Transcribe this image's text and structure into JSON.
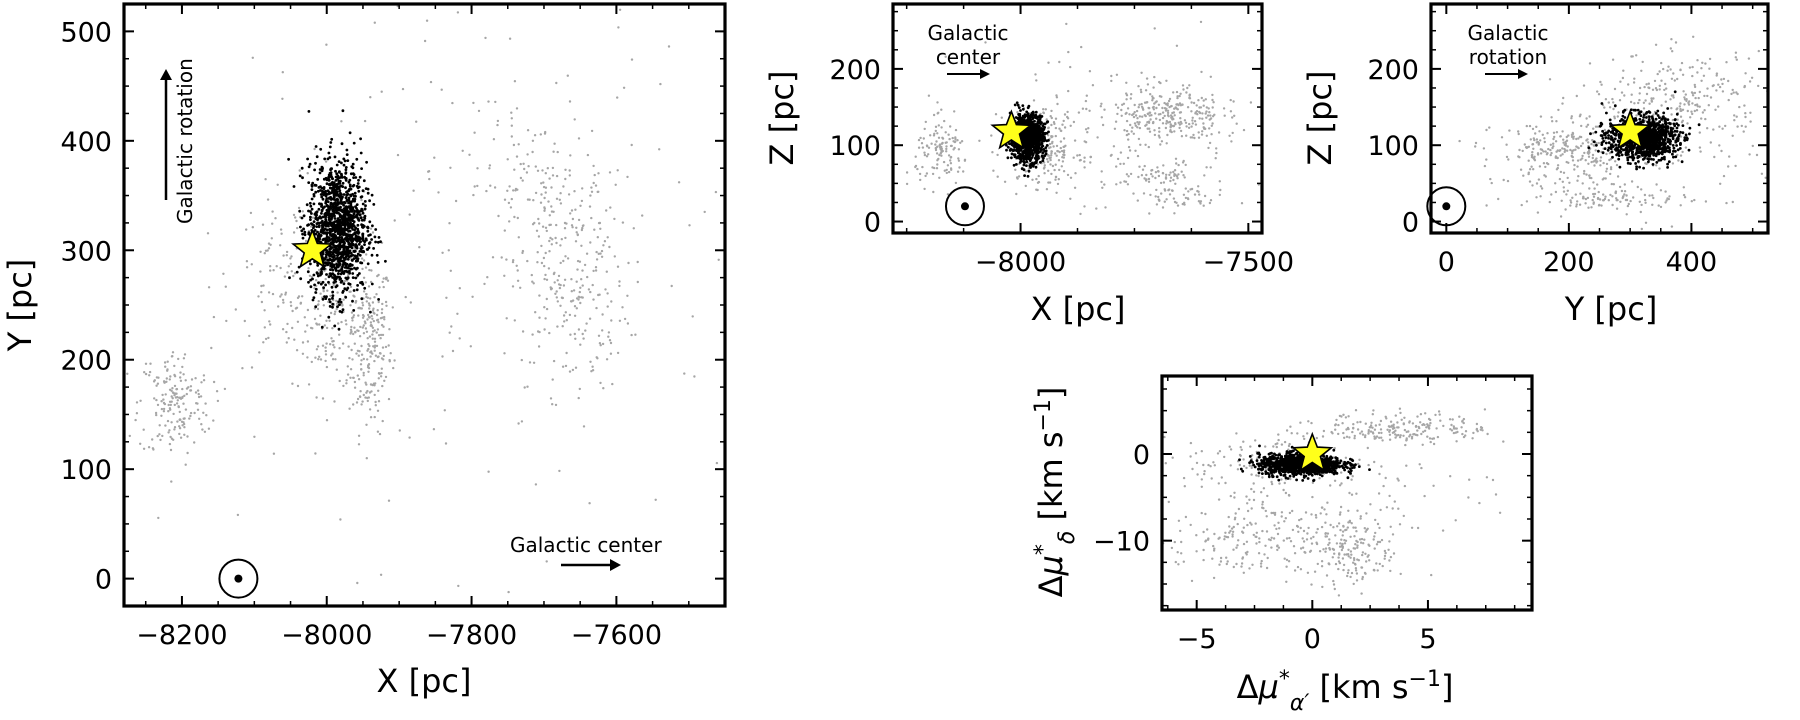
{
  "colors": {
    "member": "#000000",
    "neighbor": "#a6a6a6",
    "star_fill": "#ffff1a",
    "star_edge": "#000000"
  },
  "chart_data": [
    {
      "type": "scatter",
      "panel": "xy",
      "xlabel": "X [pc]",
      "ylabel": "Y [pc]",
      "xlim": [
        -8280,
        -7450
      ],
      "ylim": [
        -25,
        525
      ],
      "xticks": [
        -8200,
        -8000,
        -7800,
        -7600
      ],
      "yticks": [
        0,
        100,
        200,
        300,
        400,
        500
      ],
      "xtick_labels": [
        "−8200",
        "−8000",
        "−7800",
        "−7600"
      ],
      "ytick_labels": [
        "0",
        "100",
        "200",
        "300",
        "400",
        "500"
      ],
      "grid": false,
      "sun": {
        "x": -8122,
        "y": 0
      },
      "star": {
        "x": -8020,
        "y": 300
      },
      "annotations": [
        {
          "text": "Galactic rotation",
          "direction": "+Y"
        },
        {
          "text": "Galactic center",
          "direction": "+X"
        }
      ],
      "series": [
        {
          "role": "cluster members",
          "center": [
            -7985,
            320
          ],
          "spread": [
            20,
            30
          ],
          "n": 1300
        },
        {
          "role": "neighboring stars",
          "center": [
            -7940,
            215
          ],
          "spread": [
            15,
            40
          ],
          "n": 220
        },
        {
          "role": "neighboring stars",
          "center": [
            -7990,
            250
          ],
          "spread": [
            25,
            40
          ],
          "n": 180
        },
        {
          "role": "neighboring stars",
          "center": [
            -8050,
            275
          ],
          "spread": [
            40,
            40
          ],
          "n": 140
        },
        {
          "role": "neighboring stars",
          "center": [
            -8210,
            160
          ],
          "spread": [
            25,
            25
          ],
          "n": 180
        },
        {
          "role": "neighboring stars",
          "center": [
            -7665,
            270
          ],
          "spread": [
            40,
            50
          ],
          "n": 240
        },
        {
          "role": "neighboring stars",
          "center": [
            -7710,
            360
          ],
          "spread": [
            50,
            30
          ],
          "n": 100
        },
        {
          "role": "neighboring stars",
          "center": [
            -7780,
            300
          ],
          "spread": [
            160,
            140
          ],
          "n": 160
        }
      ]
    },
    {
      "type": "scatter",
      "panel": "xz",
      "xlabel": "X [pc]",
      "ylabel": "Z [pc]",
      "xlim": [
        -8280,
        -7470
      ],
      "ylim": [
        -15,
        285
      ],
      "xticks": [
        -8000,
        -7500
      ],
      "yticks": [
        0,
        100,
        200
      ],
      "xtick_labels": [
        "−8000",
        "−7500"
      ],
      "ytick_labels": [
        "0",
        "100",
        "200"
      ],
      "grid": false,
      "sun": {
        "x": -8122,
        "y": 20
      },
      "star": {
        "x": -8020,
        "y": 118
      },
      "annotations": [
        {
          "text": "Galactic center",
          "direction": "+X"
        }
      ],
      "series": [
        {
          "role": "cluster members",
          "center": [
            -7985,
            110
          ],
          "spread": [
            18,
            15
          ],
          "n": 1100
        },
        {
          "role": "neighboring stars",
          "center": [
            -7680,
            140
          ],
          "spread": [
            60,
            20
          ],
          "n": 260
        },
        {
          "role": "neighboring stars",
          "center": [
            -8170,
            90
          ],
          "spread": [
            30,
            20
          ],
          "n": 120
        },
        {
          "role": "neighboring stars",
          "center": [
            -7950,
            95
          ],
          "spread": [
            40,
            25
          ],
          "n": 200
        },
        {
          "role": "neighboring stars",
          "center": [
            -7700,
            60
          ],
          "spread": [
            50,
            8
          ],
          "n": 60
        },
        {
          "role": "neighboring stars",
          "center": [
            -7650,
            30
          ],
          "spread": [
            50,
            8
          ],
          "n": 50
        },
        {
          "role": "neighboring stars",
          "center": [
            -7780,
            120
          ],
          "spread": [
            170,
            60
          ],
          "n": 140
        }
      ]
    },
    {
      "type": "scatter",
      "panel": "yz",
      "xlabel": "Y [pc]",
      "ylabel": "Z [pc]",
      "xlim": [
        -25,
        525
      ],
      "ylim": [
        -15,
        285
      ],
      "xticks": [
        0,
        200,
        400
      ],
      "yticks": [
        0,
        100,
        200
      ],
      "xtick_labels": [
        "0",
        "200",
        "400"
      ],
      "ytick_labels": [
        "0",
        "100",
        "200"
      ],
      "grid": false,
      "sun": {
        "x": 0,
        "y": 20
      },
      "star": {
        "x": 300,
        "y": 118
      },
      "annotations": [
        {
          "text": "Galactic rotation",
          "direction": "+Y"
        }
      ],
      "series": [
        {
          "role": "cluster members",
          "center": [
            320,
            110
          ],
          "spread": [
            28,
            14
          ],
          "n": 1100
        },
        {
          "role": "neighboring stars",
          "center": [
            380,
            160
          ],
          "spread": [
            70,
            30
          ],
          "n": 260
        },
        {
          "role": "neighboring stars",
          "center": [
            200,
            90
          ],
          "spread": [
            60,
            20
          ],
          "n": 260
        },
        {
          "role": "neighboring stars",
          "center": [
            270,
            30
          ],
          "spread": [
            60,
            6
          ],
          "n": 80
        },
        {
          "role": "neighboring stars",
          "center": [
            300,
            70
          ],
          "spread": [
            120,
            40
          ],
          "n": 120
        }
      ]
    },
    {
      "type": "scatter",
      "panel": "proper-motion",
      "xlabel": "Δμ*α′ [km s−1]",
      "ylabel": "Δμ*δ [km s−1]",
      "xlim": [
        -6.5,
        9.5
      ],
      "ylim": [
        -18,
        9
      ],
      "xticks": [
        -5,
        0,
        5
      ],
      "yticks": [
        -10,
        0
      ],
      "xtick_labels": [
        "−5",
        "0",
        "5"
      ],
      "ytick_labels": [
        "−10",
        "0"
      ],
      "grid": false,
      "star": {
        "x": 0,
        "y": 0
      },
      "series": [
        {
          "role": "cluster members",
          "center": [
            -0.5,
            -1.2
          ],
          "spread": [
            0.9,
            0.6
          ],
          "n": 1100
        },
        {
          "role": "neighboring stars",
          "center": [
            4.0,
            3.0
          ],
          "spread": [
            1.8,
            0.9
          ],
          "n": 200
        },
        {
          "role": "neighboring stars",
          "center": [
            1.5,
            -11
          ],
          "spread": [
            1.2,
            2.2
          ],
          "n": 200
        },
        {
          "role": "neighboring stars",
          "center": [
            -3.0,
            -10
          ],
          "spread": [
            1.5,
            2.5
          ],
          "n": 150
        },
        {
          "role": "neighboring stars",
          "center": [
            -1.5,
            -0.8
          ],
          "spread": [
            2.0,
            1.5
          ],
          "n": 150
        },
        {
          "role": "neighboring stars",
          "center": [
            1.0,
            -4.0
          ],
          "spread": [
            4.0,
            4.0
          ],
          "n": 120
        }
      ]
    }
  ]
}
